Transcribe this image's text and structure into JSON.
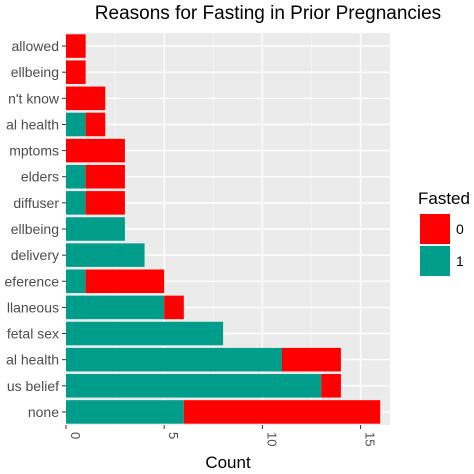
{
  "chart_data": {
    "type": "bar",
    "orientation": "horizontal",
    "stacked": true,
    "title": "Reasons for Fasting in Prior Pregnancies",
    "xlabel": "Count",
    "ylabel": "",
    "xlim": [
      0,
      16.5
    ],
    "x_ticks": [
      0,
      5,
      10,
      15
    ],
    "grid": true,
    "legend_position": "right",
    "legend_title": "Fasted",
    "categories": [
      "none",
      "us belief",
      "al health",
      "fetal sex",
      "llaneous",
      "eference",
      "delivery",
      "ellbeing",
      "diffuser",
      "elders",
      "mptoms",
      "al health",
      "n't know",
      "ellbeing",
      "allowed"
    ],
    "series": [
      {
        "name": "1",
        "color": "#009E8A",
        "values": [
          6,
          13,
          11,
          8,
          5,
          1,
          4,
          3,
          1,
          1,
          0,
          1,
          0,
          0,
          0
        ]
      },
      {
        "name": "0",
        "color": "#FF0000",
        "values": [
          10,
          1,
          3,
          0,
          1,
          4,
          0,
          0,
          2,
          2,
          3,
          1,
          2,
          1,
          1
        ]
      }
    ]
  }
}
